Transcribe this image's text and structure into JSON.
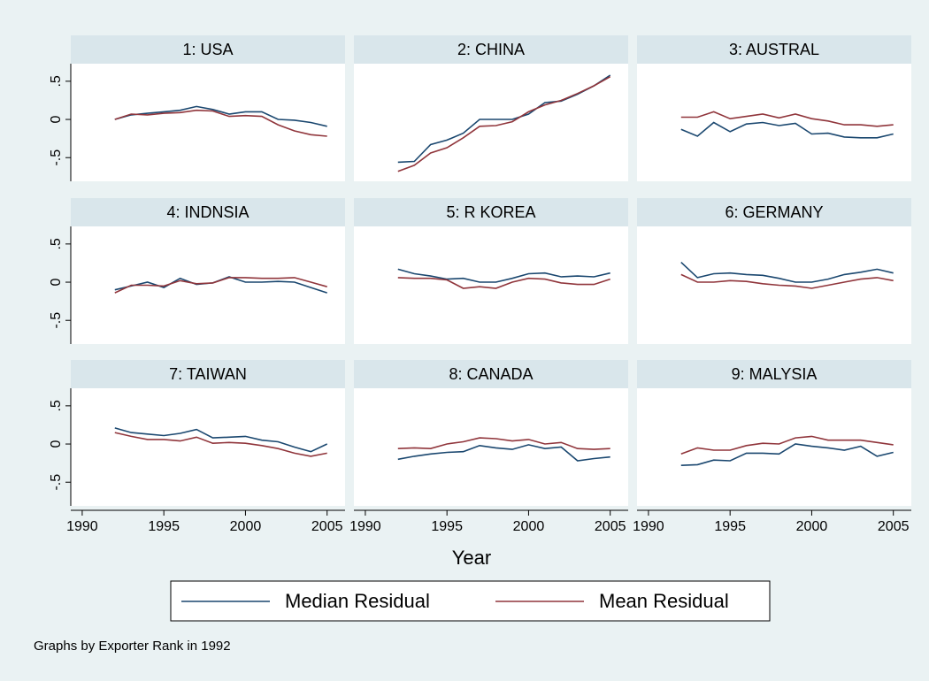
{
  "chart_data": {
    "type": "line",
    "xlabel": "Year",
    "note": "Graphs by Exporter Rank in 1992",
    "x": [
      1992,
      1993,
      1994,
      1995,
      1996,
      1997,
      1998,
      1999,
      2000,
      2001,
      2002,
      2003,
      2004,
      2005
    ],
    "xlim": [
      1989.3,
      2006.1
    ],
    "xticks": [
      1990,
      1995,
      2000,
      2005
    ],
    "ylim": [
      -0.81,
      0.73
    ],
    "yticks": [
      {
        "value": -0.5,
        "label": "-.5"
      },
      0,
      {
        "value": 0.5,
        "label": ".5"
      }
    ],
    "series": [
      {
        "name": "Median Residual",
        "color": "#1a476f"
      },
      {
        "name": "Mean Residual",
        "color": "#90353b"
      }
    ],
    "panels": [
      {
        "title": "1: USA",
        "values": [
          [
            0,
            0.06,
            0.08,
            0.1,
            0.12,
            0.17,
            0.13,
            0.07,
            0.1,
            0.1,
            0,
            -0.01,
            -0.04,
            -0.09
          ],
          [
            0,
            0.07,
            0.06,
            0.08,
            0.09,
            0.12,
            0.11,
            0.04,
            0.05,
            0.04,
            -0.07,
            -0.15,
            -0.2,
            -0.22
          ]
        ]
      },
      {
        "title": "2: CHINA",
        "values": [
          [
            -0.56,
            -0.55,
            -0.33,
            -0.27,
            -0.18,
            0,
            0,
            0,
            0.07,
            0.22,
            0.24,
            0.33,
            0.44,
            0.58
          ],
          [
            -0.68,
            -0.6,
            -0.44,
            -0.37,
            -0.24,
            -0.09,
            -0.08,
            -0.03,
            0.1,
            0.19,
            0.25,
            0.34,
            0.44,
            0.56
          ]
        ]
      },
      {
        "title": "3: AUSTRAL",
        "values": [
          [
            -0.13,
            -0.22,
            -0.04,
            -0.16,
            -0.06,
            -0.04,
            -0.08,
            -0.05,
            -0.19,
            -0.18,
            -0.23,
            -0.24,
            -0.24,
            -0.19
          ],
          [
            0.03,
            0.03,
            0.1,
            0.01,
            0.04,
            0.07,
            0.02,
            0.07,
            0.01,
            -0.02,
            -0.07,
            -0.07,
            -0.09,
            -0.07
          ]
        ]
      },
      {
        "title": "4: INDNSIA",
        "values": [
          [
            -0.1,
            -0.05,
            0,
            -0.07,
            0.05,
            -0.03,
            -0.01,
            0.07,
            0,
            0,
            0.01,
            0,
            -0.07,
            -0.14
          ],
          [
            -0.14,
            -0.04,
            -0.04,
            -0.05,
            0.02,
            -0.02,
            -0.01,
            0.06,
            0.06,
            0.05,
            0.05,
            0.06,
            0,
            -0.06
          ]
        ]
      },
      {
        "title": "5: R KOREA",
        "values": [
          [
            0.17,
            0.11,
            0.08,
            0.04,
            0.05,
            0,
            0,
            0.05,
            0.11,
            0.12,
            0.07,
            0.08,
            0.07,
            0.12
          ],
          [
            0.06,
            0.05,
            0.05,
            0.03,
            -0.08,
            -0.06,
            -0.08,
            0,
            0.05,
            0.04,
            -0.01,
            -0.03,
            -0.03,
            0.04
          ]
        ]
      },
      {
        "title": "6: GERMANY",
        "values": [
          [
            0.26,
            0.06,
            0.11,
            0.12,
            0.1,
            0.09,
            0.05,
            0,
            0,
            0.04,
            0.1,
            0.13,
            0.17,
            0.12
          ],
          [
            0.1,
            0,
            0,
            0.02,
            0.01,
            -0.02,
            -0.04,
            -0.05,
            -0.08,
            -0.04,
            0,
            0.04,
            0.06,
            0.02
          ]
        ]
      },
      {
        "title": "7: TAIWAN",
        "values": [
          [
            0.21,
            0.15,
            0.13,
            0.11,
            0.14,
            0.19,
            0.08,
            0.09,
            0.1,
            0.05,
            0.03,
            -0.04,
            -0.1,
            0
          ],
          [
            0.15,
            0.1,
            0.06,
            0.06,
            0.04,
            0.09,
            0.01,
            0.02,
            0.01,
            -0.02,
            -0.06,
            -0.12,
            -0.16,
            -0.12
          ]
        ]
      },
      {
        "title": "8: CANADA",
        "values": [
          [
            -0.2,
            -0.16,
            -0.13,
            -0.11,
            -0.1,
            -0.02,
            -0.05,
            -0.07,
            -0.01,
            -0.06,
            -0.04,
            -0.22,
            -0.19,
            -0.17
          ],
          [
            -0.06,
            -0.05,
            -0.06,
            0,
            0.03,
            0.08,
            0.07,
            0.04,
            0.06,
            0,
            0.02,
            -0.06,
            -0.07,
            -0.06
          ]
        ]
      },
      {
        "title": "9: MALYSIA",
        "values": [
          [
            -0.28,
            -0.27,
            -0.21,
            -0.22,
            -0.12,
            -0.12,
            -0.13,
            0,
            -0.03,
            -0.05,
            -0.08,
            -0.03,
            -0.16,
            -0.11
          ],
          [
            -0.13,
            -0.05,
            -0.08,
            -0.08,
            -0.02,
            0.01,
            0,
            0.08,
            0.1,
            0.05,
            0.05,
            0.05,
            0.02,
            -0.01
          ]
        ]
      }
    ]
  }
}
